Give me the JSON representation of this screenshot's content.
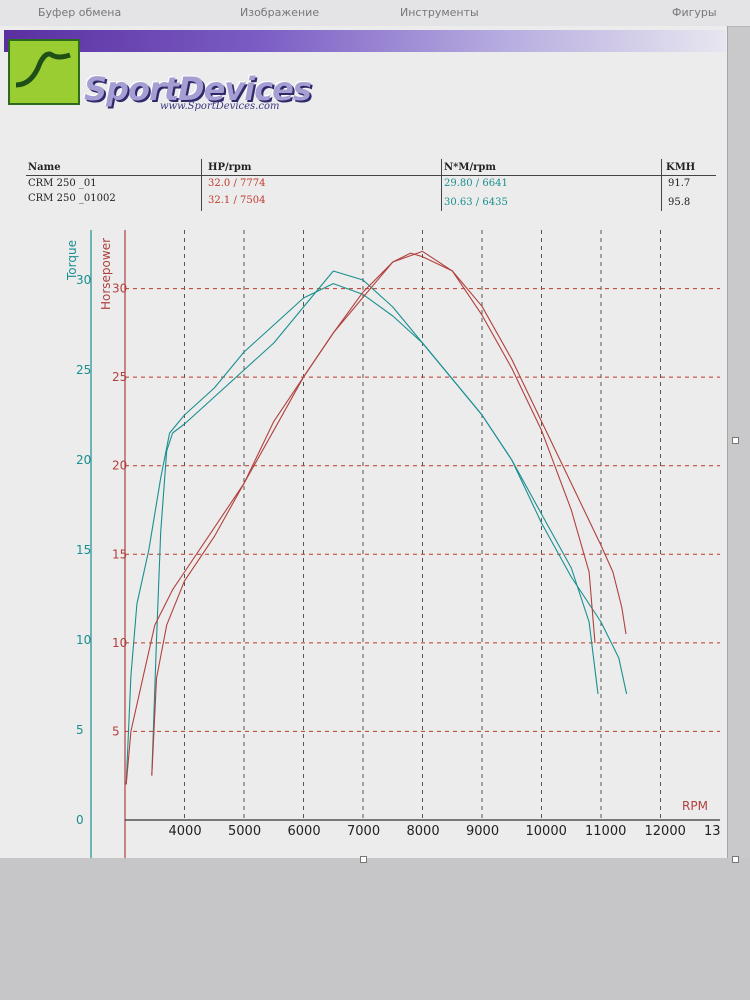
{
  "toolbar": {
    "items": [
      "Буфер обмена",
      "Изображение",
      "Инструменты",
      "Фигуры"
    ]
  },
  "header": {
    "brand": "SportDevices",
    "url": "www.SportDevices.com"
  },
  "results_table": {
    "columns": [
      "Name",
      "HP/rpm",
      "N*M/rpm",
      "KMH"
    ],
    "rows": [
      {
        "name": "CRM 250 _01",
        "hp_rpm": "32.0 / 7774",
        "nm_rpm": "29.80 / 6641",
        "kmh": "91.7"
      },
      {
        "name": "CRM 250 _01002",
        "hp_rpm": "32.1 / 7504",
        "nm_rpm": "30.63 / 6435",
        "kmh": "95.8"
      }
    ]
  },
  "chart_data": {
    "type": "line",
    "xlabel": "RPM",
    "left_axis_label": "Torque",
    "right_axis_label": "Horsepower",
    "x_ticks": [
      "4000",
      "5000",
      "6000",
      "7000",
      "8000",
      "9000",
      "10000",
      "11000",
      "12000",
      "13"
    ],
    "torque_ticks": [
      "0",
      "5",
      "10",
      "15",
      "20",
      "25",
      "30"
    ],
    "hp_ticks": [
      "5",
      "10",
      "15",
      "20",
      "25",
      "30"
    ],
    "xlim": [
      3000,
      13000
    ],
    "torque_lim": [
      0,
      31
    ],
    "hp_lim": [
      0,
      35
    ],
    "grid": true,
    "colors": {
      "torque": "#1a8f8f",
      "horsepower": "#b0413e",
      "grid_x": "#555555",
      "grid_y": "#c0392b",
      "axis": "#1a8f8f"
    },
    "series": [
      {
        "axis": "torque",
        "points": [
          [
            3020,
            2
          ],
          [
            3100,
            8
          ],
          [
            3200,
            12
          ],
          [
            3400,
            15
          ],
          [
            3600,
            19
          ],
          [
            3750,
            21.5
          ],
          [
            4000,
            22.5
          ],
          [
            4500,
            24
          ],
          [
            5000,
            26
          ],
          [
            5500,
            27.5
          ],
          [
            6000,
            29
          ],
          [
            6500,
            29.8
          ],
          [
            7000,
            29.2
          ],
          [
            7500,
            28
          ],
          [
            8000,
            26.5
          ],
          [
            8500,
            24.5
          ],
          [
            9000,
            22.5
          ],
          [
            9500,
            20
          ],
          [
            10000,
            17
          ],
          [
            10500,
            14
          ],
          [
            10800,
            11
          ],
          [
            10950,
            7
          ]
        ]
      },
      {
        "axis": "torque",
        "points": [
          [
            3450,
            2.5
          ],
          [
            3530,
            10
          ],
          [
            3600,
            16
          ],
          [
            3700,
            20.5
          ],
          [
            3800,
            21.5
          ],
          [
            4000,
            22
          ],
          [
            4500,
            23.5
          ],
          [
            5000,
            25
          ],
          [
            5500,
            26.5
          ],
          [
            6000,
            28.5
          ],
          [
            6500,
            30.5
          ],
          [
            7000,
            30
          ],
          [
            7500,
            28.5
          ],
          [
            8000,
            26.5
          ],
          [
            8500,
            24.5
          ],
          [
            9000,
            22.5
          ],
          [
            9500,
            20
          ],
          [
            10000,
            16.5
          ],
          [
            10500,
            13.5
          ],
          [
            11000,
            11
          ],
          [
            11300,
            9
          ],
          [
            11430,
            7
          ]
        ]
      },
      {
        "axis": "horsepower",
        "points": [
          [
            3020,
            2
          ],
          [
            3100,
            5
          ],
          [
            3300,
            8
          ],
          [
            3500,
            11
          ],
          [
            3800,
            13
          ],
          [
            4000,
            14
          ],
          [
            4500,
            16.5
          ],
          [
            5000,
            19
          ],
          [
            5500,
            22.5
          ],
          [
            6000,
            25
          ],
          [
            6500,
            27.5
          ],
          [
            7000,
            29.5
          ],
          [
            7500,
            31.5
          ],
          [
            7800,
            32
          ],
          [
            8000,
            31.8
          ],
          [
            8500,
            31
          ],
          [
            9000,
            28.5
          ],
          [
            9500,
            25.5
          ],
          [
            10000,
            22
          ],
          [
            10500,
            17.5
          ],
          [
            10800,
            14
          ],
          [
            10900,
            10
          ]
        ]
      },
      {
        "axis": "horsepower",
        "points": [
          [
            3450,
            2.5
          ],
          [
            3530,
            8
          ],
          [
            3700,
            11
          ],
          [
            4000,
            13.5
          ],
          [
            4500,
            16
          ],
          [
            5000,
            19
          ],
          [
            5500,
            22
          ],
          [
            6000,
            25
          ],
          [
            6500,
            27.5
          ],
          [
            7000,
            29.8
          ],
          [
            7500,
            31.5
          ],
          [
            8000,
            32.1
          ],
          [
            8500,
            31
          ],
          [
            9000,
            29
          ],
          [
            9500,
            26
          ],
          [
            10000,
            22.5
          ],
          [
            10500,
            19
          ],
          [
            11000,
            15.5
          ],
          [
            11200,
            14
          ],
          [
            11350,
            12
          ],
          [
            11420,
            10.5
          ]
        ]
      }
    ]
  }
}
